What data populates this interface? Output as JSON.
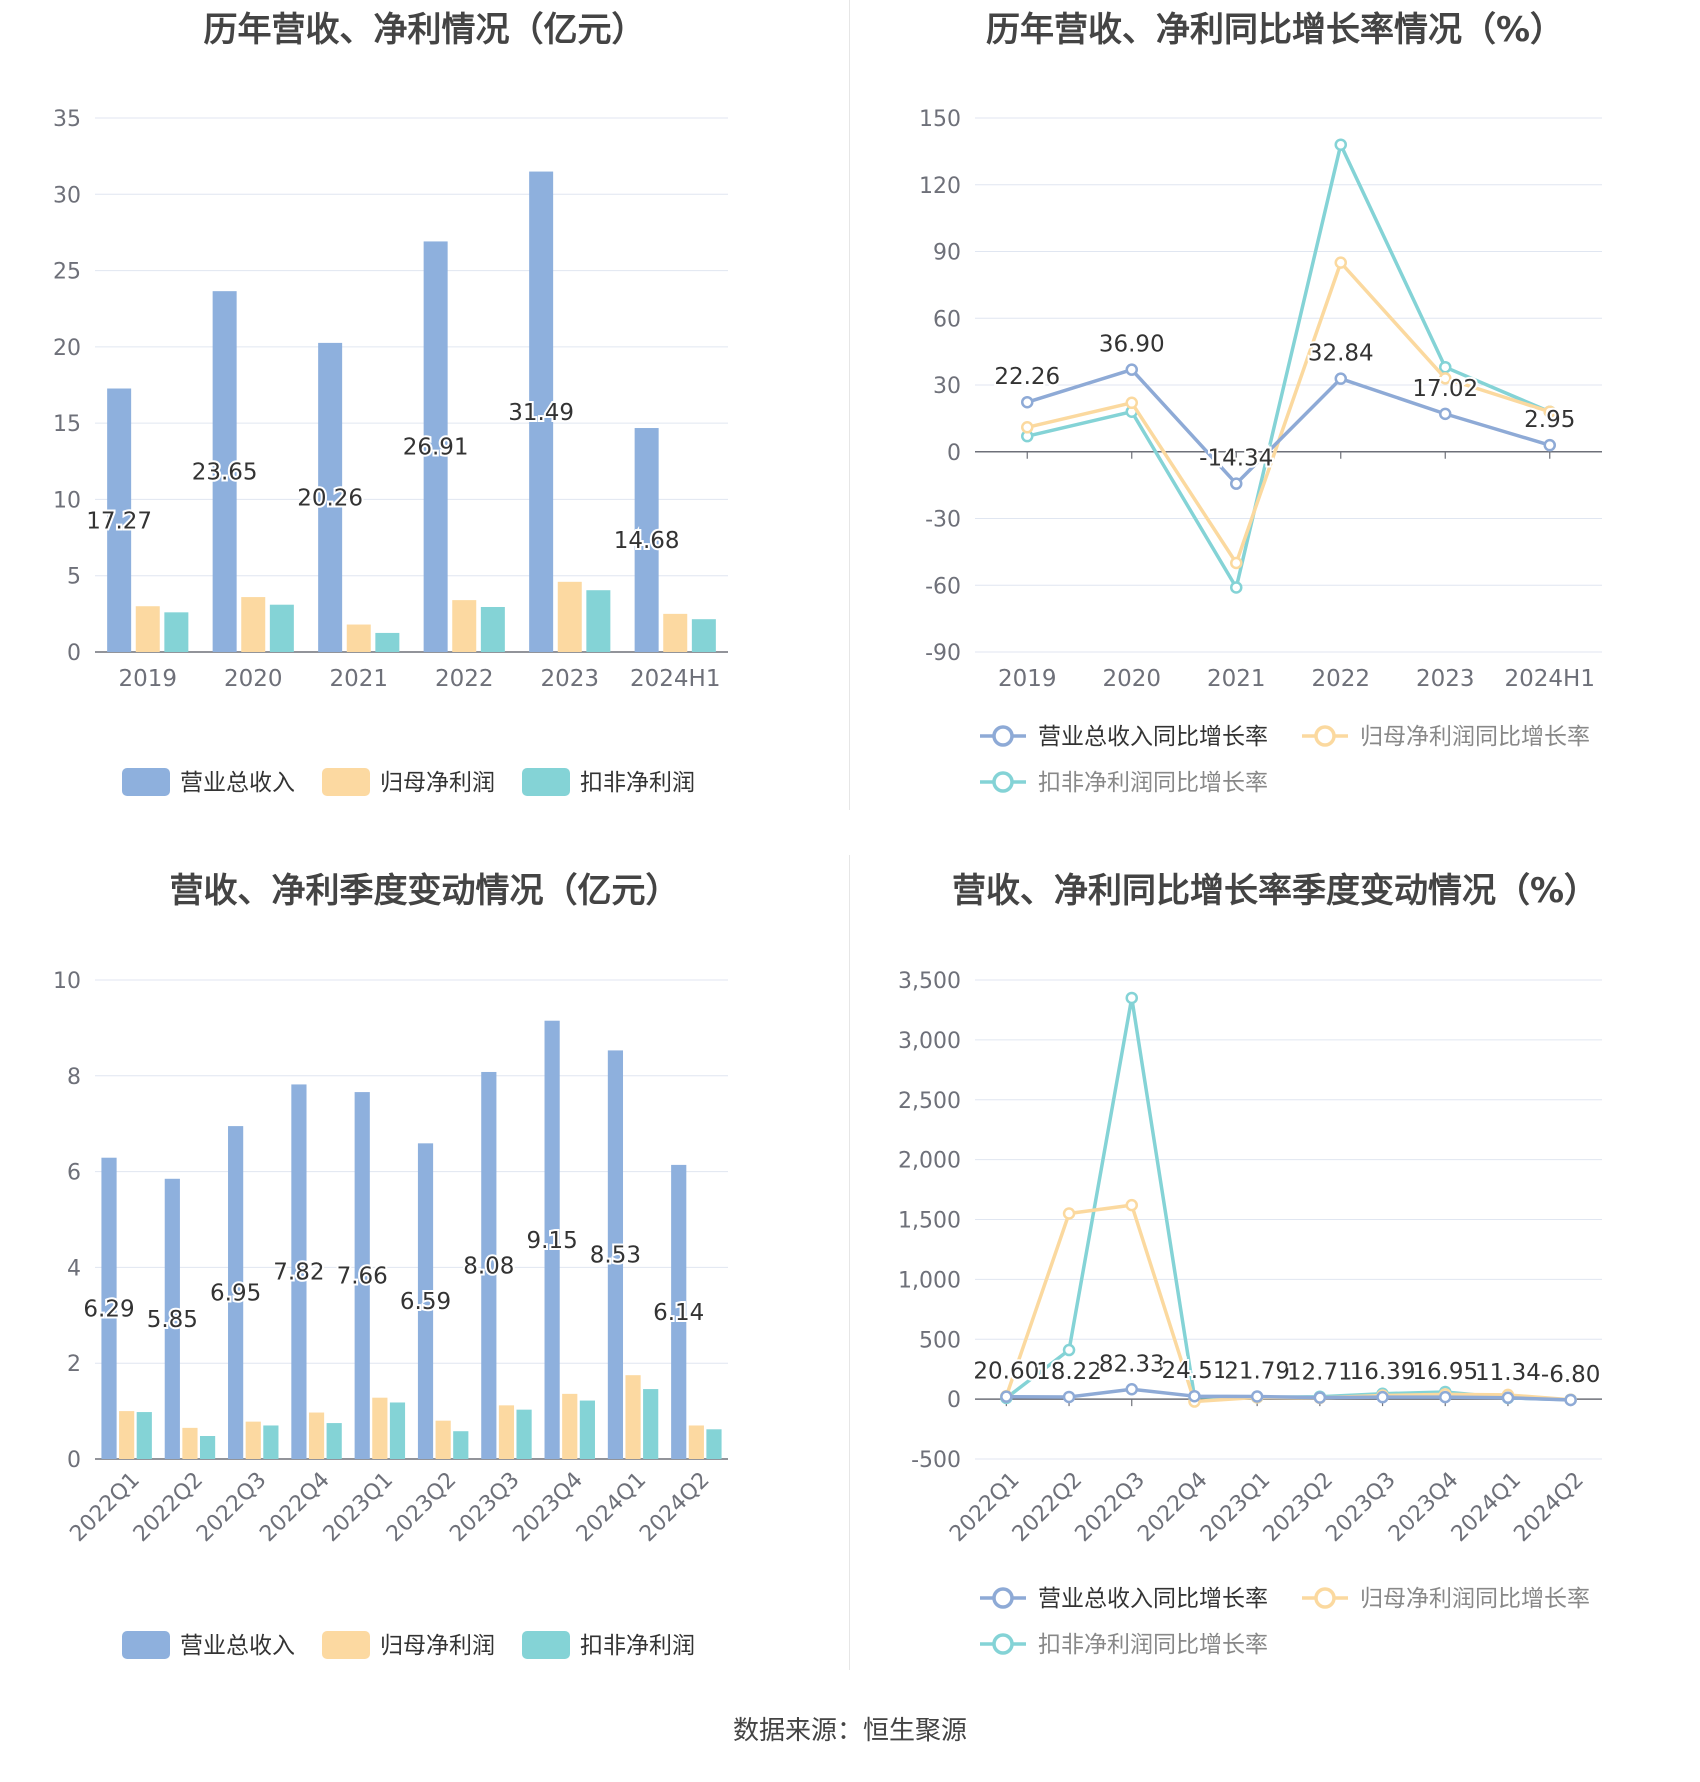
{
  "charts": [
    {
      "title": "历年营收、净利情况（亿元）",
      "type": "bar",
      "categories": [
        "2019",
        "2020",
        "2021",
        "2022",
        "2023",
        "2024H1"
      ],
      "ylim": [
        0,
        35
      ],
      "yticks": [
        0,
        5,
        10,
        15,
        20,
        25,
        30,
        35
      ],
      "series": [
        {
          "name": "营业总收入",
          "color": "#8eb0dd",
          "values": [
            17.27,
            23.65,
            20.26,
            26.91,
            31.49,
            14.68
          ],
          "labels": [
            "17.27",
            "23.65",
            "20.26",
            "26.91",
            "31.49",
            "14.68"
          ]
        },
        {
          "name": "归母净利润",
          "color": "#fcd9a1",
          "values": [
            3.0,
            3.6,
            1.8,
            3.4,
            4.6,
            2.5
          ]
        },
        {
          "name": "扣非净利润",
          "color": "#84d3d6",
          "values": [
            2.6,
            3.1,
            1.25,
            2.95,
            4.05,
            2.15
          ]
        }
      ],
      "grid": true,
      "legend": "bottom"
    },
    {
      "title": "历年营收、净利同比增长率情况（%）",
      "type": "line",
      "categories": [
        "2019",
        "2020",
        "2021",
        "2022",
        "2023",
        "2024H1"
      ],
      "ylim": [
        -90,
        150
      ],
      "yticks": [
        -90,
        -60,
        -30,
        0,
        30,
        60,
        90,
        120,
        150
      ],
      "series": [
        {
          "name": "营业总收入同比增长率",
          "color": "#8eaad6",
          "values": [
            22.26,
            36.9,
            -14.34,
            32.84,
            17.02,
            2.95
          ],
          "labels": [
            "22.26",
            "36.90",
            "-14.34",
            "32.84",
            "17.02",
            "2.95"
          ]
        },
        {
          "name": "归母净利润同比增长率",
          "color": "#fbd99f",
          "values": [
            11,
            22,
            -50,
            85,
            33,
            18
          ]
        },
        {
          "name": "扣非净利润同比增长率",
          "color": "#84d3d6",
          "values": [
            7,
            18,
            -61,
            138,
            38,
            18
          ]
        }
      ],
      "grid": true,
      "legend": "bottom"
    },
    {
      "title": "营收、净利季度变动情况（亿元）",
      "type": "bar",
      "categories": [
        "2022Q1",
        "2022Q2",
        "2022Q3",
        "2022Q4",
        "2023Q1",
        "2023Q2",
        "2023Q3",
        "2023Q4",
        "2024Q1",
        "2024Q2"
      ],
      "ylim": [
        0,
        10
      ],
      "yticks": [
        0,
        2,
        4,
        6,
        8,
        10
      ],
      "series": [
        {
          "name": "营业总收入",
          "color": "#8eb0dd",
          "values": [
            6.29,
            5.85,
            6.95,
            7.82,
            7.66,
            6.59,
            8.08,
            9.15,
            8.53,
            6.14
          ],
          "labels": [
            "6.29",
            "5.85",
            "6.95",
            "7.82",
            "7.66",
            "6.59",
            "8.08",
            "9.15",
            "8.53",
            "6.14"
          ]
        },
        {
          "name": "归母净利润",
          "color": "#fcd9a1",
          "values": [
            1.0,
            0.65,
            0.78,
            0.97,
            1.28,
            0.8,
            1.12,
            1.36,
            1.75,
            0.7
          ]
        },
        {
          "name": "扣非净利润",
          "color": "#84d3d6",
          "values": [
            0.98,
            0.48,
            0.7,
            0.75,
            1.18,
            0.58,
            1.03,
            1.22,
            1.46,
            0.62
          ]
        }
      ],
      "grid": true,
      "legend": "bottom"
    },
    {
      "title": "营收、净利同比增长率季度变动情况（%）",
      "type": "line",
      "categories": [
        "2022Q1",
        "2022Q2",
        "2022Q3",
        "2022Q4",
        "2023Q1",
        "2023Q2",
        "2023Q3",
        "2023Q4",
        "2024Q1",
        "2024Q2"
      ],
      "ylim": [
        -500,
        3500
      ],
      "yticks": [
        -500,
        0,
        500,
        1000,
        1500,
        2000,
        2500,
        3000,
        3500
      ],
      "yticklabels": [
        "-500",
        "0",
        "500",
        "1,000",
        "1,500",
        "2,000",
        "2,500",
        "3,000",
        "3,500"
      ],
      "series": [
        {
          "name": "营业总收入同比增长率",
          "color": "#8eaad6",
          "values": [
            20.6,
            18.22,
            82.33,
            24.51,
            21.79,
            12.71,
            16.39,
            16.95,
            11.34,
            -6.8
          ],
          "labels": [
            "20.60",
            "18.22",
            "82.33",
            "24.51",
            "21.79",
            "12.71",
            "16.39",
            "16.95",
            "11.34",
            "-6.80"
          ]
        },
        {
          "name": "归母净利润同比增长率",
          "color": "#fbd99f",
          "values": [
            25,
            1550,
            1620,
            -20,
            15,
            10,
            30,
            40,
            35,
            -5
          ]
        },
        {
          "name": "扣非净利润同比增长率",
          "color": "#84d3d6",
          "values": [
            10,
            410,
            3350,
            20,
            15,
            20,
            45,
            60,
            10,
            -5
          ]
        }
      ],
      "grid": true,
      "legend": "bottom"
    }
  ],
  "source": "数据来源：恒生聚源"
}
